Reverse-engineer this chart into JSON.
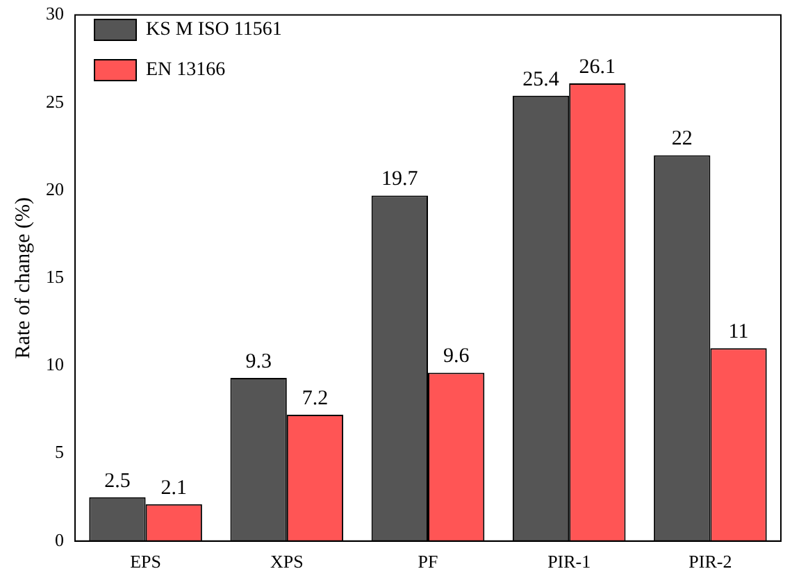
{
  "chart_data": {
    "type": "bar",
    "ylabel": "Rate of change (%)",
    "categories": [
      "EPS",
      "XPS",
      "PF",
      "PIR-1",
      "PIR-2"
    ],
    "series": [
      {
        "name": "KS M ISO 11561",
        "color": "#555555",
        "values": [
          2.5,
          9.3,
          19.7,
          25.4,
          22
        ]
      },
      {
        "name": "EN 13166",
        "color": "#ff5555",
        "values": [
          2.1,
          7.2,
          9.6,
          26.1,
          11
        ]
      }
    ],
    "ylim": [
      0,
      30
    ],
    "yticks": [
      0,
      5,
      10,
      15,
      20,
      25,
      30
    ],
    "grid": false,
    "legend": "top left",
    "data_labels": true
  }
}
